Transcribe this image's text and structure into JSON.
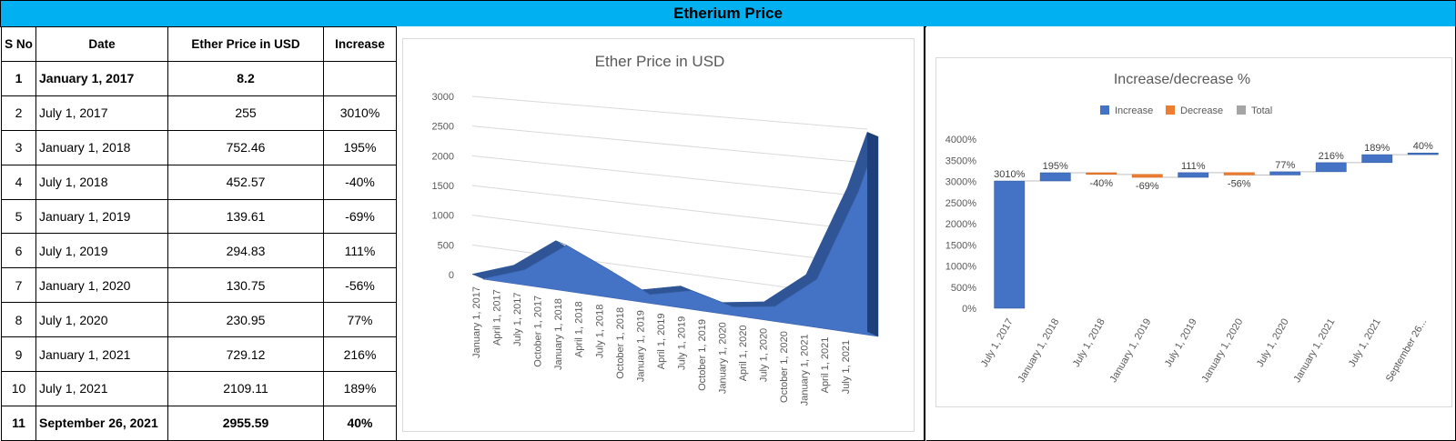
{
  "banner_title": "Etherium Price",
  "table": {
    "headers": [
      "S No",
      "Date",
      "Ether Price in USD",
      "Increase"
    ],
    "rows": [
      {
        "sno": "1",
        "date": "January 1, 2017",
        "price": "8.2",
        "increase": "",
        "bold": true
      },
      {
        "sno": "2",
        "date": "July 1, 2017",
        "price": "255",
        "increase": "3010%",
        "bold": false
      },
      {
        "sno": "3",
        "date": "January 1, 2018",
        "price": "752.46",
        "increase": "195%",
        "bold": false
      },
      {
        "sno": "4",
        "date": "July 1, 2018",
        "price": "452.57",
        "increase": "-40%",
        "bold": false
      },
      {
        "sno": "5",
        "date": "January 1, 2019",
        "price": "139.61",
        "increase": "-69%",
        "bold": false
      },
      {
        "sno": "6",
        "date": "July 1, 2019",
        "price": "294.83",
        "increase": "111%",
        "bold": false
      },
      {
        "sno": "7",
        "date": "January 1, 2020",
        "price": "130.75",
        "increase": "-56%",
        "bold": false
      },
      {
        "sno": "8",
        "date": "July 1, 2020",
        "price": "230.95",
        "increase": "77%",
        "bold": false
      },
      {
        "sno": "9",
        "date": "January 1, 2021",
        "price": "729.12",
        "increase": "216%",
        "bold": false
      },
      {
        "sno": "10",
        "date": "July 1, 2021",
        "price": "2109.11",
        "increase": "189%",
        "bold": false
      },
      {
        "sno": "11",
        "date": "September 26, 2021",
        "price": "2955.59",
        "increase": "40%",
        "bold": true
      }
    ]
  },
  "chart_data": [
    {
      "type": "area",
      "title": "Ether Price in USD",
      "xlabel": "",
      "ylabel": "",
      "ylim": [
        0,
        3000
      ],
      "y_ticks": [
        "0",
        "500",
        "1000",
        "1500",
        "2000",
        "2500",
        "3000"
      ],
      "x_tick_labels": [
        "January 1, 2017",
        "April 1, 2017",
        "July 1, 2017",
        "October 1, 2017",
        "January 1, 2018",
        "April 1, 2018",
        "July 1, 2018",
        "October 1, 2018",
        "January 1, 2019",
        "April 1, 2019",
        "July 1, 2019",
        "October 1, 2019",
        "January 1, 2020",
        "April 1, 2020",
        "July 1, 2020",
        "October 1, 2020",
        "January 1, 2021",
        "April 1, 2021",
        "July 1, 2021"
      ],
      "x": [
        "2017-01-01",
        "2017-07-01",
        "2018-01-01",
        "2018-07-01",
        "2019-01-01",
        "2019-07-01",
        "2020-01-01",
        "2020-07-01",
        "2021-01-01",
        "2021-07-01",
        "2021-09-26"
      ],
      "values": [
        8.2,
        255,
        752.46,
        452.57,
        139.61,
        294.83,
        130.75,
        230.95,
        729.12,
        2109.11,
        2955.59
      ],
      "colors": {
        "fill": "#4472c4",
        "fill_dark": "#2f5597"
      },
      "grid": true,
      "view": "3d"
    },
    {
      "type": "bar",
      "subtype": "waterfall",
      "title": "Increase/decrease %",
      "legend": [
        "Increase",
        "Decrease",
        "Total"
      ],
      "legend_position": "top",
      "colors": {
        "Increase": "#4472c4",
        "Decrease": "#ed7d31",
        "Total": "#a5a5a5"
      },
      "categories": [
        "July 1, 2017",
        "January 1, 2018",
        "July 1, 2018",
        "January 1, 2019",
        "July 1, 2019",
        "January 1, 2020",
        "July 1, 2020",
        "January 1, 2021",
        "July 1, 2021",
        "September 26..."
      ],
      "values": [
        3010,
        195,
        -40,
        -69,
        111,
        -56,
        77,
        216,
        189,
        40
      ],
      "labels": [
        "3010%",
        "195%",
        "-40%",
        "-69%",
        "111%",
        "-56%",
        "77%",
        "216%",
        "189%",
        "40%"
      ],
      "ylim": [
        0,
        4000
      ],
      "y_ticks": [
        "0%",
        "500%",
        "1000%",
        "1500%",
        "2000%",
        "2500%",
        "3000%",
        "3500%",
        "4000%"
      ]
    }
  ]
}
